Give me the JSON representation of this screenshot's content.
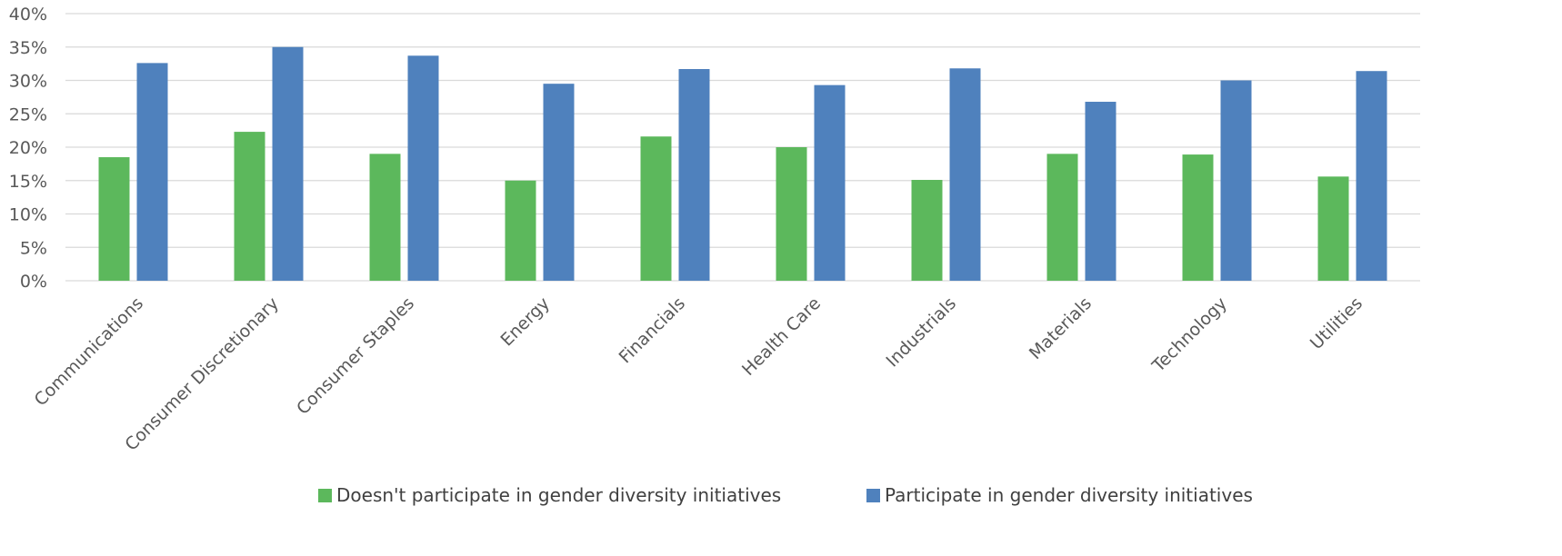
{
  "chart_data": {
    "type": "bar",
    "categories": [
      "Communications",
      "Consumer Discretionary",
      "Consumer Staples",
      "Energy",
      "Financials",
      "Health Care",
      "Industrials",
      "Materials",
      "Technology",
      "Utilities"
    ],
    "series": [
      {
        "name": "Doesn't participate in gender diversity initiatives",
        "color": "#5cb85c",
        "values": [
          18.5,
          22.3,
          19.0,
          15.0,
          21.6,
          20.0,
          15.1,
          19.0,
          18.9,
          15.6
        ]
      },
      {
        "name": "Participate in gender diversity initiatives",
        "color": "#4f81bd",
        "values": [
          32.6,
          35.0,
          33.7,
          29.5,
          31.7,
          29.3,
          31.8,
          26.8,
          30.0,
          31.4
        ]
      }
    ],
    "title": "",
    "xlabel": "",
    "ylabel": "",
    "ylim": [
      0,
      40
    ],
    "yticks": [
      "0%",
      "5%",
      "10%",
      "15%",
      "20%",
      "25%",
      "30%",
      "35%",
      "40%"
    ],
    "grid": true,
    "legend": "bottom"
  }
}
